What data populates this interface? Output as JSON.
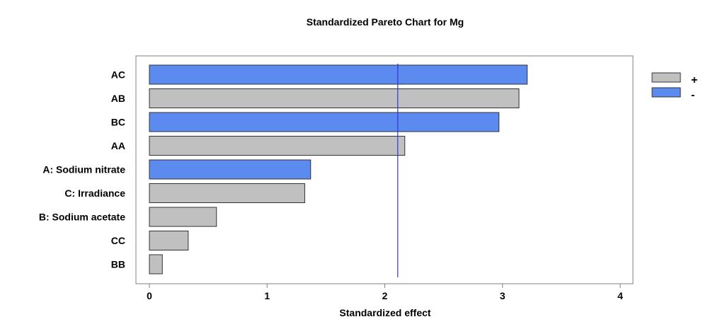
{
  "chart_data": {
    "type": "bar",
    "orientation": "horizontal",
    "title": "Standardized Pareto Chart for Mg",
    "xlabel": "Standardized effect",
    "ylabel": "",
    "xlim": [
      0,
      4
    ],
    "xticks": [
      "0",
      "1",
      "2",
      "3",
      "4"
    ],
    "reference_line": 2.11,
    "reference_color": "#3333dd",
    "categories": [
      "AC",
      "AB",
      "BC",
      "AA",
      "A: Sodium nitrate",
      "C: Irradiance",
      "B: Sodium acetate",
      "CC",
      "BB"
    ],
    "values": [
      3.21,
      3.14,
      2.97,
      2.17,
      1.37,
      1.32,
      0.57,
      0.33,
      0.11
    ],
    "signs": [
      "-",
      "+",
      "-",
      "+",
      "-",
      "+",
      "+",
      "+",
      "+"
    ],
    "legend": {
      "position": "top-right",
      "entries": [
        {
          "label": "+",
          "color": "#c0c0c0"
        },
        {
          "label": "-",
          "color": "#5b8bef"
        }
      ]
    },
    "grid": false
  }
}
